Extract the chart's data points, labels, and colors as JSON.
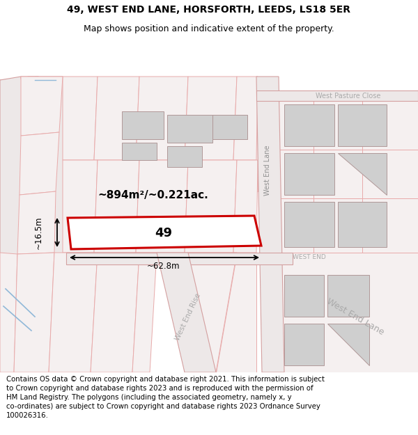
{
  "title_line1": "49, WEST END LANE, HORSFORTH, LEEDS, LS18 5ER",
  "title_line2": "Map shows position and indicative extent of the property.",
  "footer_text": "Contains OS data © Crown copyright and database right 2021. This information is subject\nto Crown copyright and database rights 2023 and is reproduced with the permission of\nHM Land Registry. The polygons (including the associated geometry, namely x, y\nco-ordinates) are subject to Crown copyright and database rights 2023 Ordnance Survey\n100026316.",
  "area_label": "~894m²/~0.221ac.",
  "number_label": "49",
  "width_label": "~62.8m",
  "height_label": "~16.5m",
  "street_west_end": "WEST END",
  "street_west_end_lane_v": "West End Lane",
  "street_west_end_lane_diag": "West End Lane",
  "street_west_pasture": "West Pasture Close",
  "street_west_end_rise": "West End Rise",
  "title_fontsize": 10,
  "subtitle_fontsize": 9,
  "footer_fontsize": 7.3,
  "map_bg": "#f7f3f3"
}
